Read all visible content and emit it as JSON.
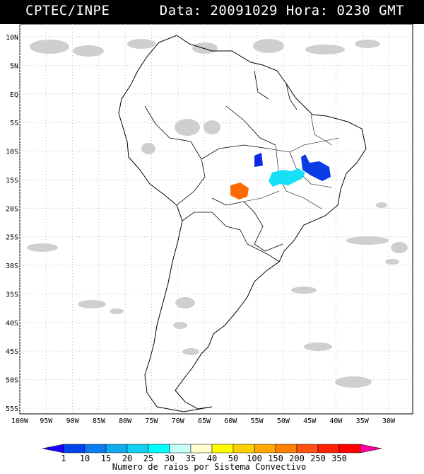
{
  "header": {
    "source": "CPTEC/INPE",
    "datetime": "Data: 20091029 Hora: 0230 GMT"
  },
  "map": {
    "lat_labels": [
      "10N",
      "5N",
      "EQ",
      "5S",
      "10S",
      "15S",
      "20S",
      "25S",
      "30S",
      "35S",
      "40S",
      "45S",
      "50S",
      "55S"
    ],
    "lon_labels": [
      "100W",
      "95W",
      "90W",
      "85W",
      "80W",
      "75W",
      "70W",
      "65W",
      "60W",
      "55W",
      "50W",
      "45W",
      "40W",
      "35W",
      "30W"
    ],
    "lat_values": [
      10,
      5,
      0,
      -5,
      -10,
      -15,
      -20,
      -25,
      -30,
      -35,
      -40,
      -45,
      -50,
      -55
    ],
    "lon_values": [
      -100,
      -95,
      -90,
      -85,
      -80,
      -75,
      -70,
      -65,
      -60,
      -55,
      -50,
      -45,
      -40,
      -35,
      -30
    ]
  },
  "colorbar": {
    "title": "Numero de raios por Sistema Convectivo",
    "ticks": [
      "1",
      "10",
      "15",
      "20",
      "25",
      "30",
      "35",
      "40",
      "50",
      "100",
      "150",
      "200",
      "250",
      "350"
    ],
    "colors": [
      "#1a00ff",
      "#0044ee",
      "#0a7ef0",
      "#12aaee",
      "#10d0f0",
      "#00ffff",
      "#c6fff6",
      "#ffffcc",
      "#ffff00",
      "#ffd000",
      "#ffa800",
      "#ff8000",
      "#ff5010",
      "#ff2000",
      "#ff0000",
      "#ff00a0"
    ]
  },
  "systems": [
    {
      "name": "blue-system-west",
      "lightning_class": "1-10",
      "color": "#0a28e6"
    },
    {
      "name": "blue-system-east",
      "lightning_class": "1-10",
      "color": "#0a3ce6"
    },
    {
      "name": "cyan-system",
      "lightning_class": "20-25",
      "color": "#16e0f5"
    },
    {
      "name": "orange-system",
      "lightning_class": "150-200",
      "color": "#ff6a00"
    }
  ]
}
